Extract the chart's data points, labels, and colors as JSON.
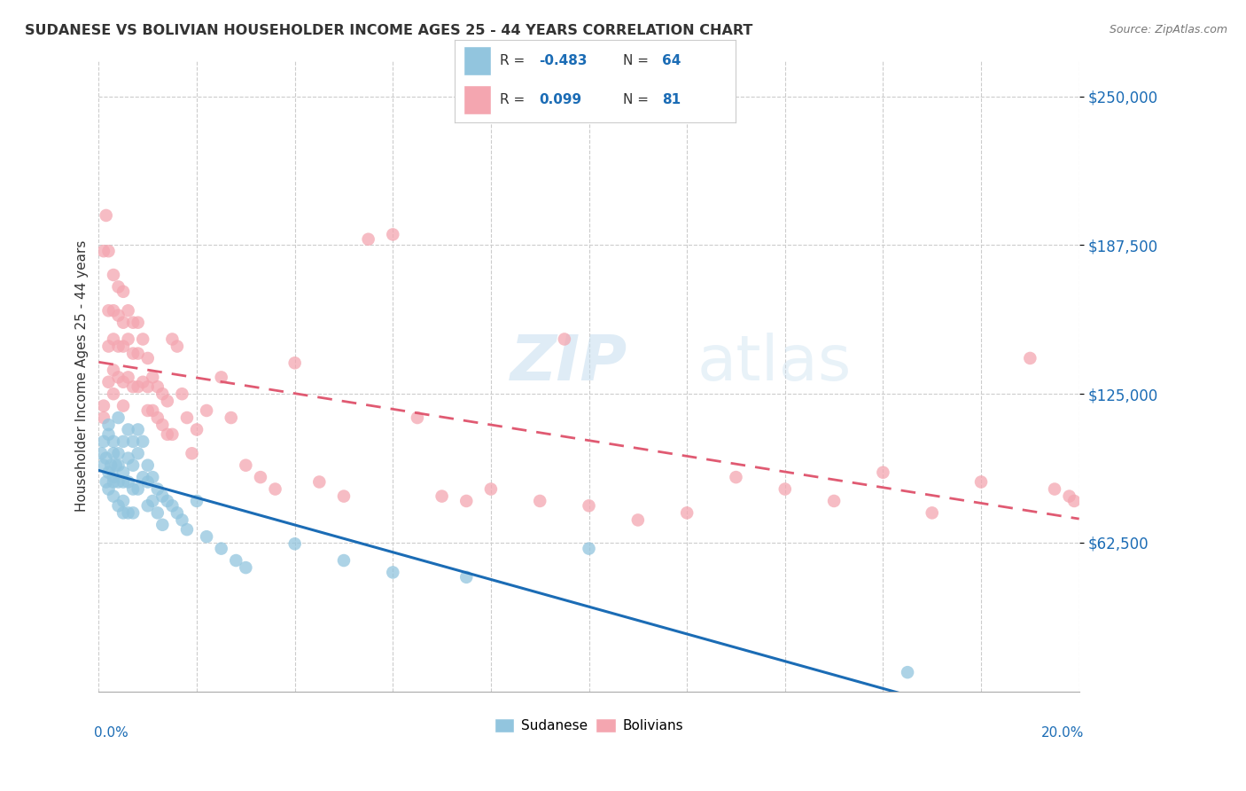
{
  "title": "SUDANESE VS BOLIVIAN HOUSEHOLDER INCOME AGES 25 - 44 YEARS CORRELATION CHART",
  "source": "Source: ZipAtlas.com",
  "ylabel": "Householder Income Ages 25 - 44 years",
  "ytick_labels": [
    "$62,500",
    "$125,000",
    "$187,500",
    "$250,000"
  ],
  "ytick_values": [
    62500,
    125000,
    187500,
    250000
  ],
  "ymin": 0,
  "ymax": 265000,
  "xmin": 0.0,
  "xmax": 0.2,
  "watermark_zip": "ZIP",
  "watermark_atlas": "atlas",
  "sudanese_color": "#92c5de",
  "bolivian_color": "#f4a6b0",
  "sudanese_line_color": "#1b6cb5",
  "bolivian_line_color": "#e05a72",
  "legend_r_sud": "-0.483",
  "legend_n_sud": "64",
  "legend_r_bol": "0.099",
  "legend_n_bol": "81",
  "sudanese_x": [
    0.0005,
    0.001,
    0.001,
    0.0015,
    0.0015,
    0.002,
    0.002,
    0.002,
    0.002,
    0.0025,
    0.003,
    0.003,
    0.003,
    0.003,
    0.003,
    0.0035,
    0.004,
    0.004,
    0.004,
    0.004,
    0.004,
    0.005,
    0.005,
    0.005,
    0.005,
    0.005,
    0.006,
    0.006,
    0.006,
    0.006,
    0.007,
    0.007,
    0.007,
    0.007,
    0.008,
    0.008,
    0.008,
    0.009,
    0.009,
    0.01,
    0.01,
    0.01,
    0.011,
    0.011,
    0.012,
    0.012,
    0.013,
    0.013,
    0.014,
    0.015,
    0.016,
    0.017,
    0.018,
    0.02,
    0.022,
    0.025,
    0.028,
    0.03,
    0.04,
    0.05,
    0.06,
    0.075,
    0.1,
    0.165
  ],
  "sudanese_y": [
    100000,
    95000,
    105000,
    88000,
    98000,
    92000,
    108000,
    85000,
    112000,
    95000,
    100000,
    90000,
    88000,
    105000,
    82000,
    95000,
    100000,
    88000,
    78000,
    115000,
    95000,
    105000,
    92000,
    88000,
    80000,
    75000,
    110000,
    98000,
    88000,
    75000,
    105000,
    95000,
    85000,
    75000,
    110000,
    100000,
    85000,
    105000,
    90000,
    95000,
    88000,
    78000,
    90000,
    80000,
    85000,
    75000,
    82000,
    70000,
    80000,
    78000,
    75000,
    72000,
    68000,
    80000,
    65000,
    60000,
    55000,
    52000,
    62000,
    55000,
    50000,
    48000,
    60000,
    8000
  ],
  "bolivian_x": [
    0.001,
    0.001,
    0.001,
    0.0015,
    0.002,
    0.002,
    0.002,
    0.002,
    0.003,
    0.003,
    0.003,
    0.003,
    0.003,
    0.004,
    0.004,
    0.004,
    0.004,
    0.005,
    0.005,
    0.005,
    0.005,
    0.005,
    0.006,
    0.006,
    0.006,
    0.007,
    0.007,
    0.007,
    0.008,
    0.008,
    0.008,
    0.009,
    0.009,
    0.01,
    0.01,
    0.01,
    0.011,
    0.011,
    0.012,
    0.012,
    0.013,
    0.013,
    0.014,
    0.014,
    0.015,
    0.015,
    0.016,
    0.017,
    0.018,
    0.019,
    0.02,
    0.022,
    0.025,
    0.027,
    0.03,
    0.033,
    0.036,
    0.04,
    0.045,
    0.05,
    0.055,
    0.06,
    0.065,
    0.07,
    0.075,
    0.08,
    0.09,
    0.095,
    0.1,
    0.11,
    0.12,
    0.13,
    0.14,
    0.15,
    0.16,
    0.17,
    0.18,
    0.19,
    0.195,
    0.198,
    0.199
  ],
  "bolivian_y": [
    185000,
    120000,
    115000,
    200000,
    185000,
    160000,
    145000,
    130000,
    175000,
    160000,
    148000,
    135000,
    125000,
    170000,
    158000,
    145000,
    132000,
    168000,
    155000,
    145000,
    130000,
    120000,
    160000,
    148000,
    132000,
    155000,
    142000,
    128000,
    155000,
    142000,
    128000,
    148000,
    130000,
    140000,
    128000,
    118000,
    132000,
    118000,
    128000,
    115000,
    125000,
    112000,
    122000,
    108000,
    148000,
    108000,
    145000,
    125000,
    115000,
    100000,
    110000,
    118000,
    132000,
    115000,
    95000,
    90000,
    85000,
    138000,
    88000,
    82000,
    190000,
    192000,
    115000,
    82000,
    80000,
    85000,
    80000,
    148000,
    78000,
    72000,
    75000,
    90000,
    85000,
    80000,
    92000,
    75000,
    88000,
    140000,
    85000,
    82000,
    80000
  ]
}
